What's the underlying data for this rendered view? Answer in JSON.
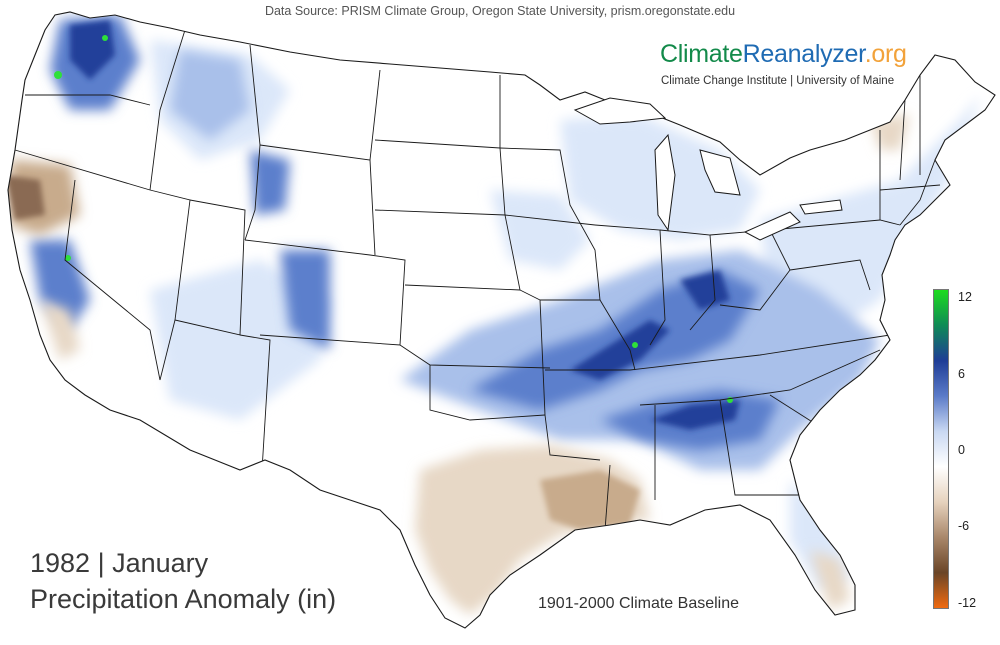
{
  "header": {
    "data_source": "Data Source: PRISM Climate Group, Oregon State University, prism.oregonstate.edu",
    "brand": {
      "part1": "Climate",
      "part2": "Reanalyzer",
      "part3": ".org"
    },
    "institute": "Climate Change Institute | University of Maine"
  },
  "title": {
    "year_month": "1982 | January",
    "variable": "Precipitation Anomaly (in)"
  },
  "baseline": "1901-2000 Climate Baseline",
  "legend": {
    "ticks": [
      "12",
      "6",
      "0",
      "-6",
      "-12"
    ],
    "colors": [
      "#1edc1e",
      "#0f8a56",
      "#1f3d96",
      "#5b7bc8",
      "#c9d8f2",
      "#ffffff",
      "#e6d2bd",
      "#a9876a",
      "#6a4527",
      "#f06a10"
    ]
  },
  "colors": {
    "wet_light": "#dbe7f9",
    "wet_mid": "#a9c0ea",
    "wet_strong": "#5c7fcc",
    "wet_extreme": "#243f9a",
    "very_wet": "#2ee03a",
    "dry_light": "#e7d8c6",
    "dry_mid": "#c8ab8c",
    "dry_strong": "#8a6a52"
  }
}
